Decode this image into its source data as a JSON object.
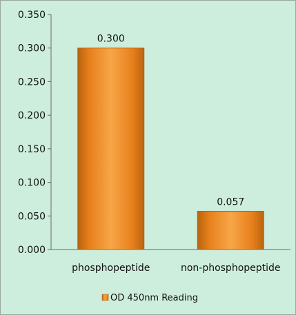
{
  "chart_data": {
    "type": "bar",
    "categories": [
      "phosphopeptide",
      "non-phosphopeptide"
    ],
    "series": [
      {
        "name": "OD 450nm Reading",
        "values": [
          0.3,
          0.057
        ]
      }
    ],
    "data_labels": [
      "0.300",
      "0.057"
    ],
    "ylim": [
      0,
      0.35
    ],
    "yticks": [
      "0.000",
      "0.050",
      "0.100",
      "0.150",
      "0.200",
      "0.250",
      "0.300",
      "0.350"
    ],
    "grid": false,
    "legend": "bottom",
    "colors": {
      "bar_light": "#f7a648",
      "bar_main": "#e8801c",
      "bar_dark": "#b7600f",
      "background": "#cdeedd"
    }
  }
}
